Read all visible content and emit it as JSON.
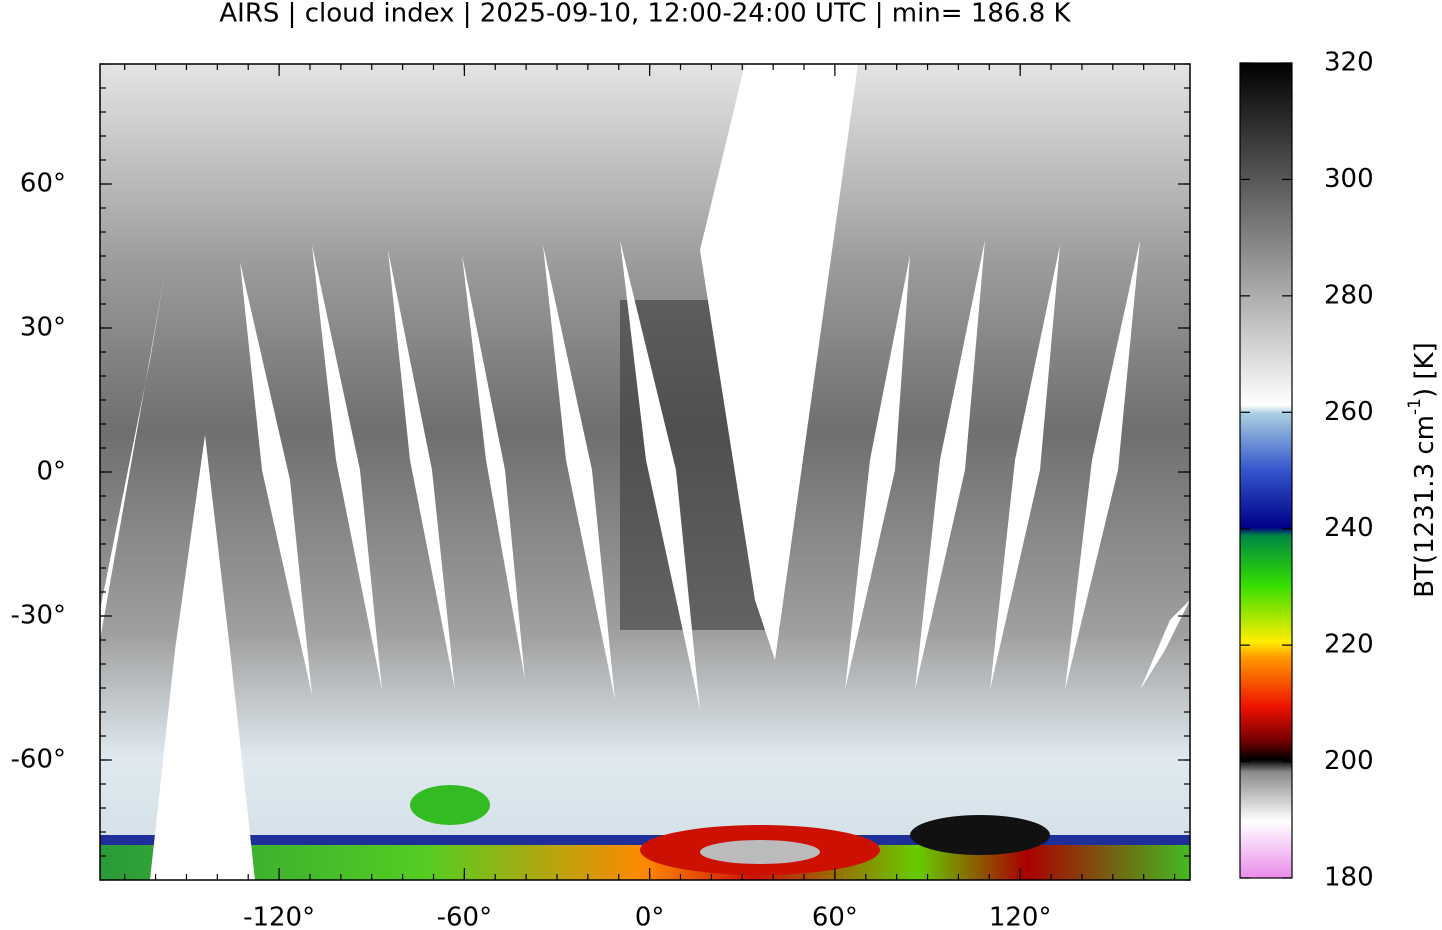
{
  "chart_data": {
    "type": "map",
    "title": "AIRS | cloud index | 2025-09-10, 12:00-24:00 UTC | min= 186.8 K",
    "xlim": [
      -178,
      175
    ],
    "ylim": [
      -85,
      85
    ],
    "xticks": [
      {
        "value": -120,
        "label": "-120°"
      },
      {
        "value": -60,
        "label": "-60°"
      },
      {
        "value": 0,
        "label": "0°"
      },
      {
        "value": 60,
        "label": "60°"
      },
      {
        "value": 120,
        "label": "120°"
      }
    ],
    "yticks": [
      {
        "value": 60,
        "label": "60°"
      },
      {
        "value": 30,
        "label": "30°"
      },
      {
        "value": 0,
        "label": "0°"
      },
      {
        "value": -30,
        "label": "-30°"
      },
      {
        "value": -60,
        "label": "-60°"
      }
    ],
    "colorbar": {
      "lim": [
        180,
        320
      ],
      "ticks": [
        180,
        200,
        220,
        240,
        260,
        280,
        300,
        320
      ],
      "label_parts": [
        "BT(1231.3 cm",
        "-1",
        ") [K]"
      ]
    }
  }
}
